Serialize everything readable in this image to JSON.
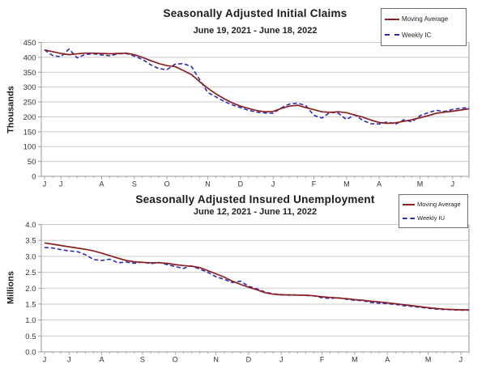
{
  "colors": {
    "moving_average": "#8b2020",
    "weekly": "#2a2ac0",
    "grid": "#c9c9c9",
    "axis": "#9a9a9a",
    "tick_text": "#333333",
    "title_text": "#1b1b1b",
    "legend_border": "#6e6e6e",
    "background": "#ffffff"
  },
  "chart_data": [
    {
      "type": "line",
      "title": "Seasonally Adjusted Initial Claims",
      "subtitle": "June 19, 2021 - June 18, 2022",
      "ylabel": "Thousands",
      "ylim": [
        0,
        450
      ],
      "y_tick_step": 50,
      "y_ticks": [
        "0",
        "50",
        "100",
        "150",
        "200",
        "250",
        "300",
        "350",
        "400",
        "450"
      ],
      "grid": true,
      "weeks": 53,
      "x_month_labels": [
        "J",
        "J",
        "A",
        "S",
        "O",
        "N",
        "D",
        "J",
        "F",
        "M",
        "A",
        "M",
        "J"
      ],
      "x_month_weeks": [
        0,
        2,
        7,
        11,
        15,
        20,
        24,
        28,
        33,
        37,
        41,
        46,
        50
      ],
      "legend": {
        "position": "top-right",
        "entries": [
          {
            "label": "Moving Average",
            "series": "moving_average",
            "style": "solid"
          },
          {
            "label": "Weekly IC",
            "series": "weekly",
            "style": "dashed"
          }
        ]
      },
      "series": [
        {
          "name": "Moving Average",
          "key": "moving_average",
          "values": [
            425,
            419,
            413,
            409,
            412,
            414,
            414,
            413,
            412,
            413,
            414,
            409,
            400,
            389,
            379,
            372,
            369,
            356,
            342,
            318,
            296,
            277,
            261,
            247,
            236,
            228,
            221,
            217,
            218,
            228,
            236,
            239,
            231,
            224,
            217,
            215,
            217,
            214,
            206,
            199,
            189,
            181,
            178,
            180,
            185,
            190,
            197,
            204,
            212,
            216,
            219,
            223,
            227
          ]
        },
        {
          "name": "Weekly IC",
          "key": "weekly",
          "values": [
            425,
            406,
            402,
            428,
            398,
            410,
            412,
            408,
            405,
            412,
            413,
            404,
            393,
            375,
            362,
            359,
            377,
            379,
            369,
            325,
            282,
            267,
            252,
            240,
            231,
            222,
            216,
            213,
            212,
            230,
            243,
            246,
            238,
            205,
            196,
            216,
            212,
            191,
            207,
            188,
            177,
            176,
            183,
            175,
            190,
            183,
            204,
            214,
            222,
            218,
            225,
            229,
            231
          ]
        }
      ]
    },
    {
      "type": "line",
      "title": "Seasonally Adjusted Insured Unemployment",
      "subtitle": "June 12, 2021 - June 11, 2022",
      "ylabel": "Millions",
      "ylim": [
        0,
        4.0
      ],
      "y_tick_step": 0.5,
      "y_ticks": [
        "0.0",
        "0.5",
        "1.0",
        "1.5",
        "2.0",
        "2.5",
        "3.0",
        "3.5",
        "4.0"
      ],
      "grid": true,
      "weeks": 53,
      "x_month_labels": [
        "J",
        "J",
        "A",
        "S",
        "O",
        "N",
        "D",
        "J",
        "F",
        "M",
        "A",
        "M",
        "J"
      ],
      "x_month_weeks": [
        0,
        3,
        7,
        12,
        16,
        21,
        25,
        29,
        34,
        38,
        42,
        47,
        51
      ],
      "legend": {
        "position": "top-right",
        "entries": [
          {
            "label": "Moving Average",
            "series": "moving_average",
            "style": "solid"
          },
          {
            "label": "Weekly IU",
            "series": "weekly",
            "style": "dashed"
          }
        ]
      },
      "series": [
        {
          "name": "Moving Average",
          "key": "moving_average",
          "values": [
            3.42,
            3.38,
            3.34,
            3.3,
            3.26,
            3.22,
            3.17,
            3.1,
            3.02,
            2.94,
            2.87,
            2.83,
            2.81,
            2.8,
            2.8,
            2.78,
            2.74,
            2.71,
            2.69,
            2.65,
            2.55,
            2.45,
            2.35,
            2.22,
            2.12,
            2.03,
            1.95,
            1.86,
            1.81,
            1.79,
            1.79,
            1.78,
            1.78,
            1.76,
            1.73,
            1.71,
            1.69,
            1.67,
            1.64,
            1.62,
            1.59,
            1.57,
            1.54,
            1.51,
            1.48,
            1.45,
            1.42,
            1.39,
            1.36,
            1.34,
            1.33,
            1.32,
            1.32
          ]
        },
        {
          "name": "Weekly IU",
          "key": "weekly",
          "values": [
            3.28,
            3.26,
            3.21,
            3.17,
            3.15,
            3.05,
            2.9,
            2.87,
            2.91,
            2.8,
            2.82,
            2.78,
            2.82,
            2.77,
            2.81,
            2.74,
            2.68,
            2.62,
            2.7,
            2.6,
            2.5,
            2.36,
            2.28,
            2.18,
            2.22,
            2.06,
            1.98,
            1.88,
            1.82,
            1.8,
            1.78,
            1.79,
            1.77,
            1.76,
            1.7,
            1.68,
            1.7,
            1.65,
            1.62,
            1.61,
            1.55,
            1.53,
            1.51,
            1.49,
            1.45,
            1.43,
            1.4,
            1.37,
            1.34,
            1.33,
            1.32,
            1.31,
            1.31
          ]
        }
      ]
    }
  ]
}
